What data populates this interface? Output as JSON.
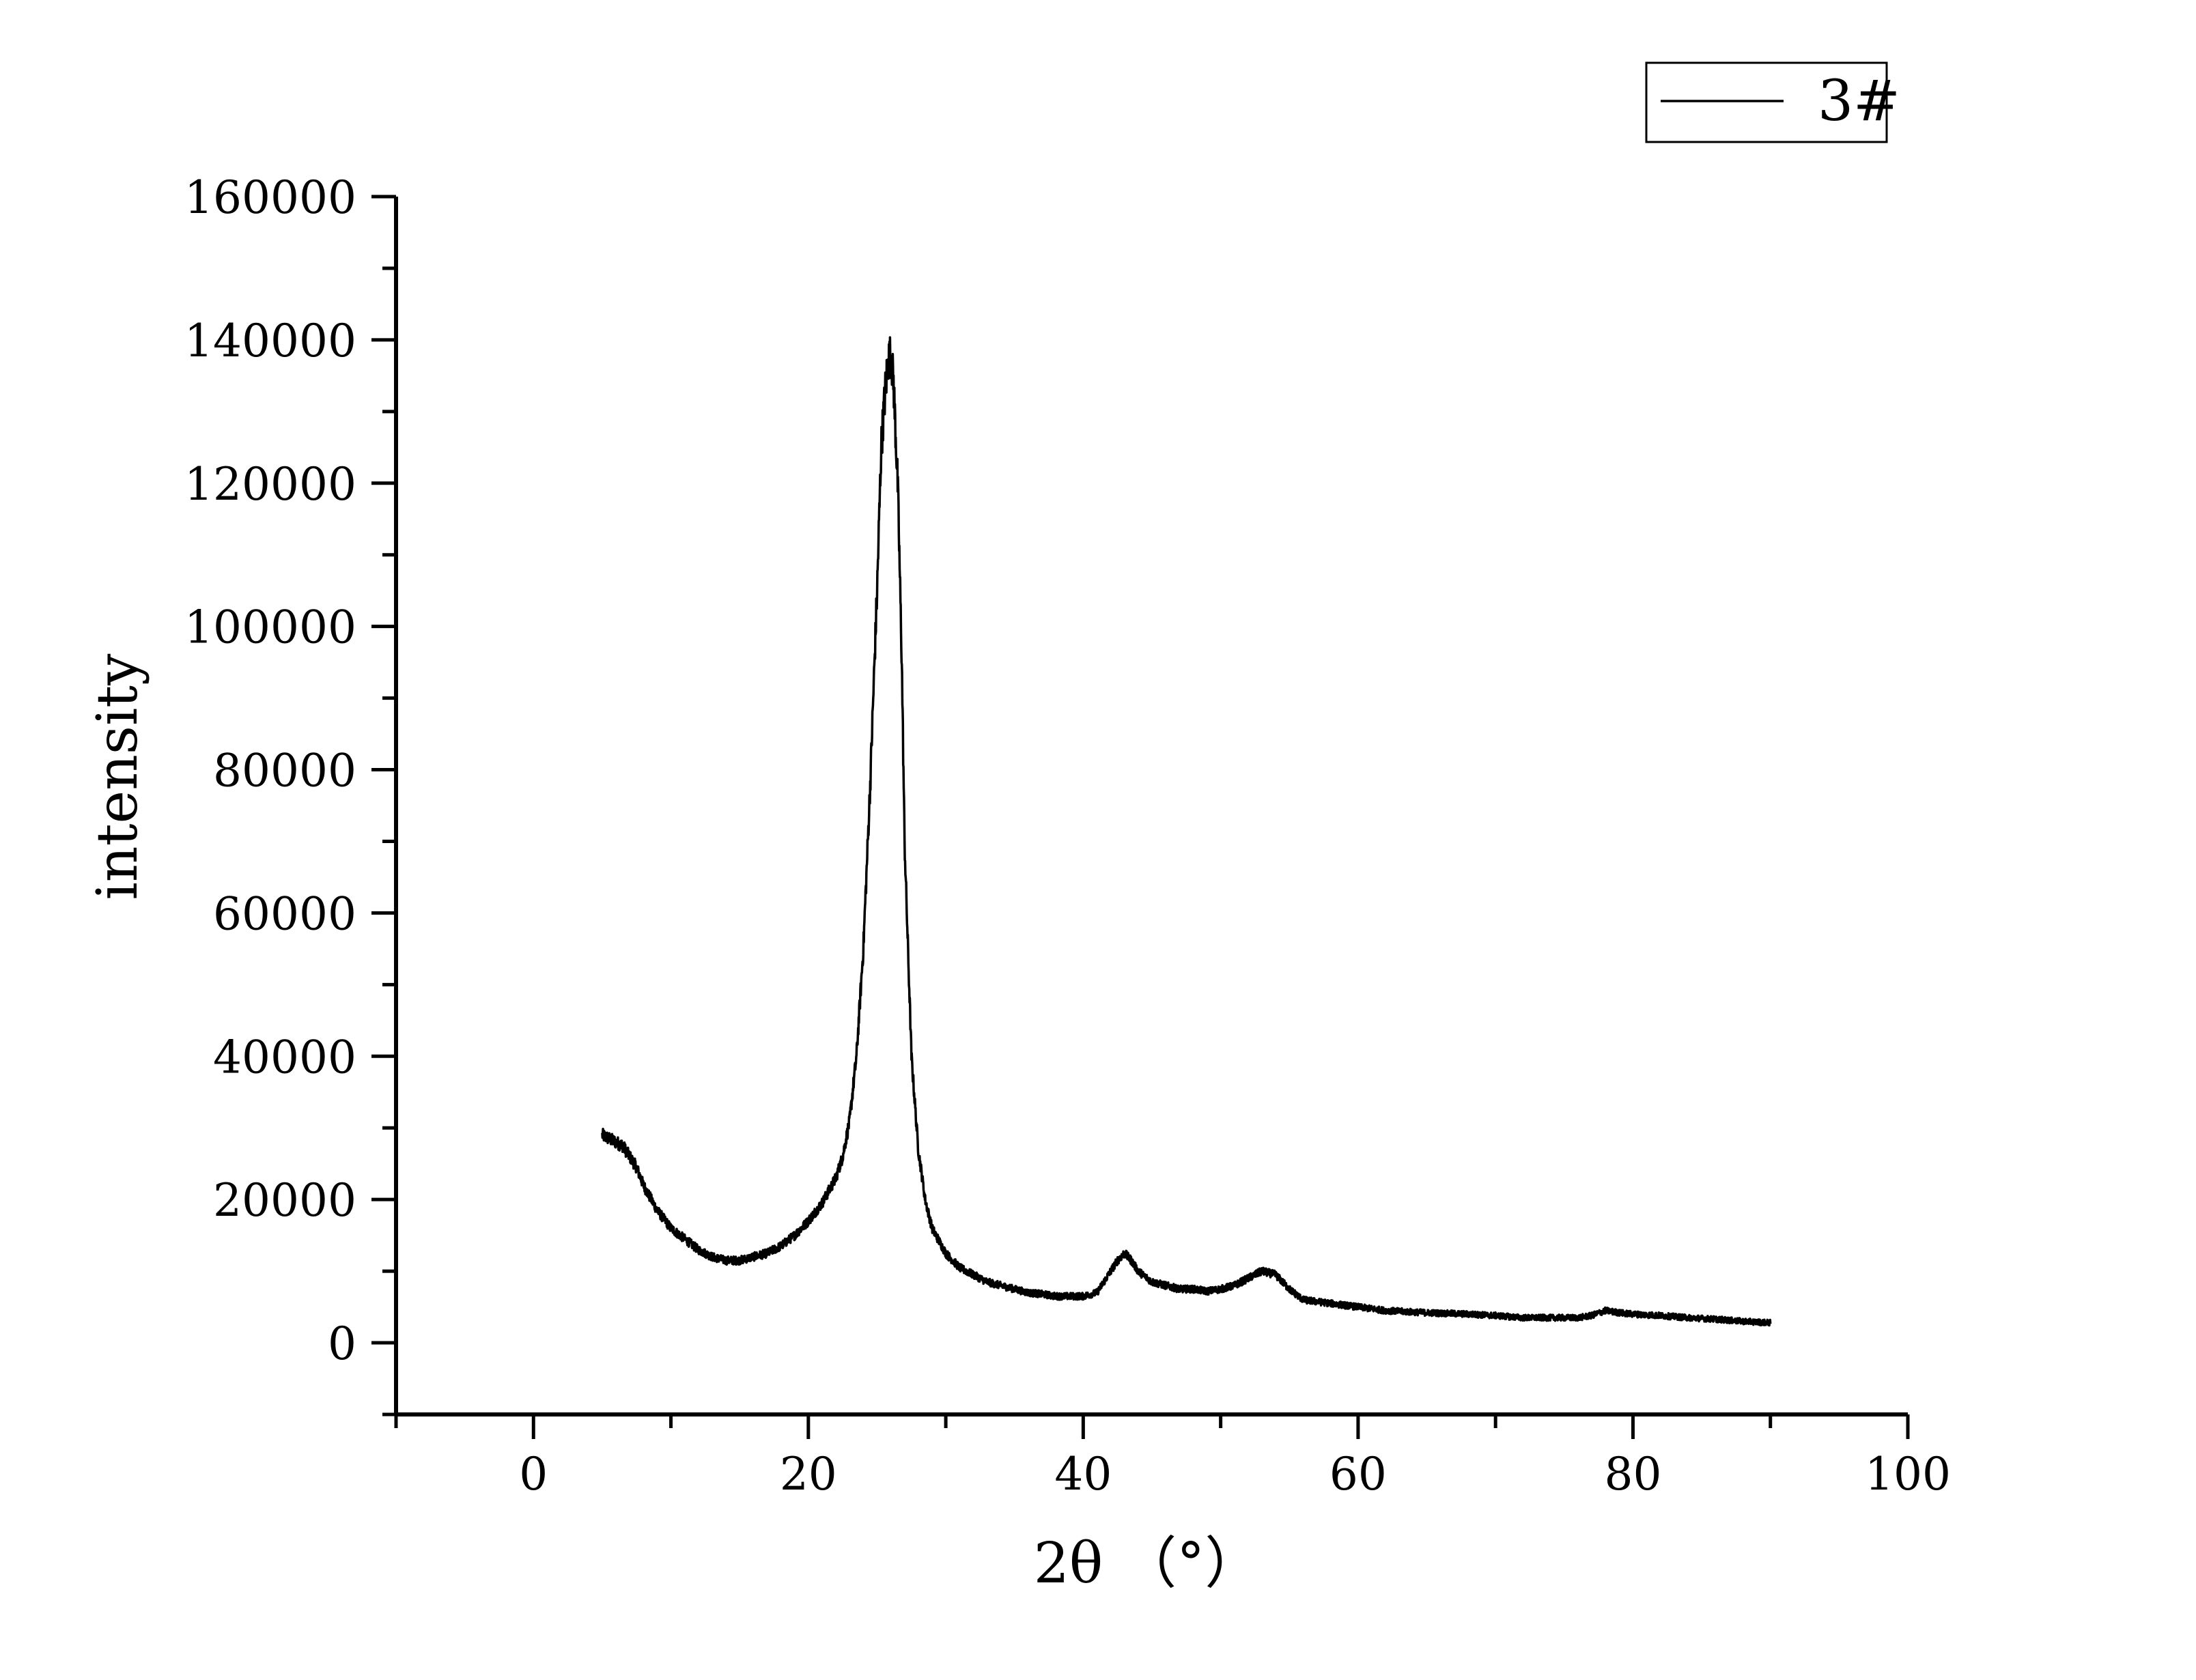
{
  "chart_data": {
    "type": "line",
    "title": "",
    "xlabel": "2θ （°）",
    "ylabel": "intensity",
    "xlim": [
      -10,
      100
    ],
    "ylim": [
      -10000,
      160000
    ],
    "x_ticks": [
      0,
      20,
      40,
      60,
      80,
      100
    ],
    "x_tick_labels": [
      "0",
      "20",
      "40",
      "60",
      "80",
      "100"
    ],
    "y_ticks": [
      0,
      20000,
      40000,
      60000,
      80000,
      100000,
      120000,
      140000,
      160000
    ],
    "y_tick_labels": [
      "0",
      "20000",
      "40000",
      "60000",
      "80000",
      "100000",
      "120000",
      "140000",
      "160000"
    ],
    "grid": false,
    "legend_position": "top-right",
    "series": [
      {
        "name": "3#",
        "color": "#000000",
        "x": [
          5,
          5.5,
          6,
          6.5,
          7,
          7.5,
          8,
          9,
          10,
          11,
          12,
          13,
          14,
          15,
          16,
          17,
          18,
          19,
          20,
          21,
          22,
          22.5,
          23,
          23.5,
          24,
          24.5,
          25,
          25.3,
          25.6,
          25.8,
          26,
          26.2,
          26.5,
          26.8,
          27,
          27.5,
          28,
          28.5,
          29,
          30,
          31,
          32,
          33,
          34,
          35,
          36,
          37,
          38,
          39,
          40,
          41,
          42,
          42.5,
          43,
          43.5,
          44,
          45,
          46,
          47,
          48,
          49,
          50,
          51,
          52,
          53,
          54,
          55,
          56,
          58,
          60,
          62,
          65,
          68,
          70,
          72,
          74,
          76,
          77,
          78,
          79,
          80,
          82,
          84,
          86,
          88,
          90
        ],
        "y": [
          29000,
          28500,
          28000,
          27500,
          26000,
          24500,
          22000,
          18500,
          16000,
          14500,
          13000,
          12000,
          11500,
          11500,
          12000,
          12500,
          13500,
          15000,
          17000,
          19500,
          23000,
          26000,
          31000,
          40000,
          55000,
          78000,
          105000,
          125000,
          133000,
          137000,
          138000,
          134000,
          120000,
          95000,
          70000,
          40000,
          27000,
          20000,
          16000,
          12500,
          10500,
          9500,
          8500,
          8000,
          7500,
          7000,
          6800,
          6500,
          6500,
          6500,
          7000,
          10000,
          11500,
          12500,
          11500,
          10000,
          8500,
          8000,
          7500,
          7500,
          7200,
          7500,
          8000,
          9000,
          10000,
          9500,
          7500,
          6000,
          5500,
          5000,
          4500,
          4200,
          4000,
          3800,
          3500,
          3500,
          3500,
          3800,
          4500,
          4200,
          4000,
          3800,
          3500,
          3300,
          3000,
          2800
        ]
      }
    ]
  }
}
